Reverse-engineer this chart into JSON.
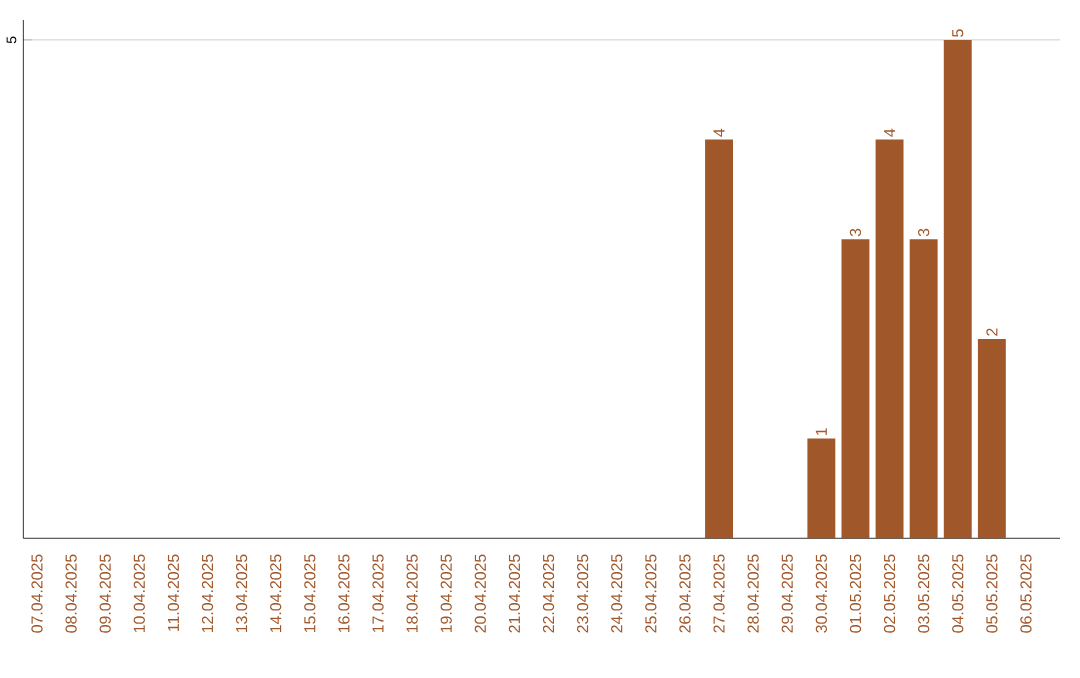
{
  "chart_data": {
    "type": "bar",
    "categories": [
      "07.04.2025",
      "08.04.2025",
      "09.04.2025",
      "10.04.2025",
      "11.04.2025",
      "12.04.2025",
      "13.04.2025",
      "14.04.2025",
      "15.04.2025",
      "16.04.2025",
      "17.04.2025",
      "18.04.2025",
      "19.04.2025",
      "20.04.2025",
      "21.04.2025",
      "22.04.2025",
      "23.04.2025",
      "24.04.2025",
      "25.04.2025",
      "26.04.2025",
      "27.04.2025",
      "28.04.2025",
      "29.04.2025",
      "30.04.2025",
      "01.05.2025",
      "02.05.2025",
      "03.05.2025",
      "04.05.2025",
      "05.05.2025",
      "06.05.2025"
    ],
    "values": [
      null,
      null,
      null,
      null,
      null,
      null,
      null,
      null,
      null,
      null,
      null,
      null,
      null,
      null,
      null,
      null,
      null,
      null,
      null,
      null,
      4,
      null,
      null,
      1,
      3,
      4,
      3,
      5,
      2,
      null
    ],
    "data_labels": true,
    "color": "#a0572a",
    "ylim": [
      0,
      5.2
    ],
    "yticks": [
      5
    ],
    "grid": "y"
  }
}
